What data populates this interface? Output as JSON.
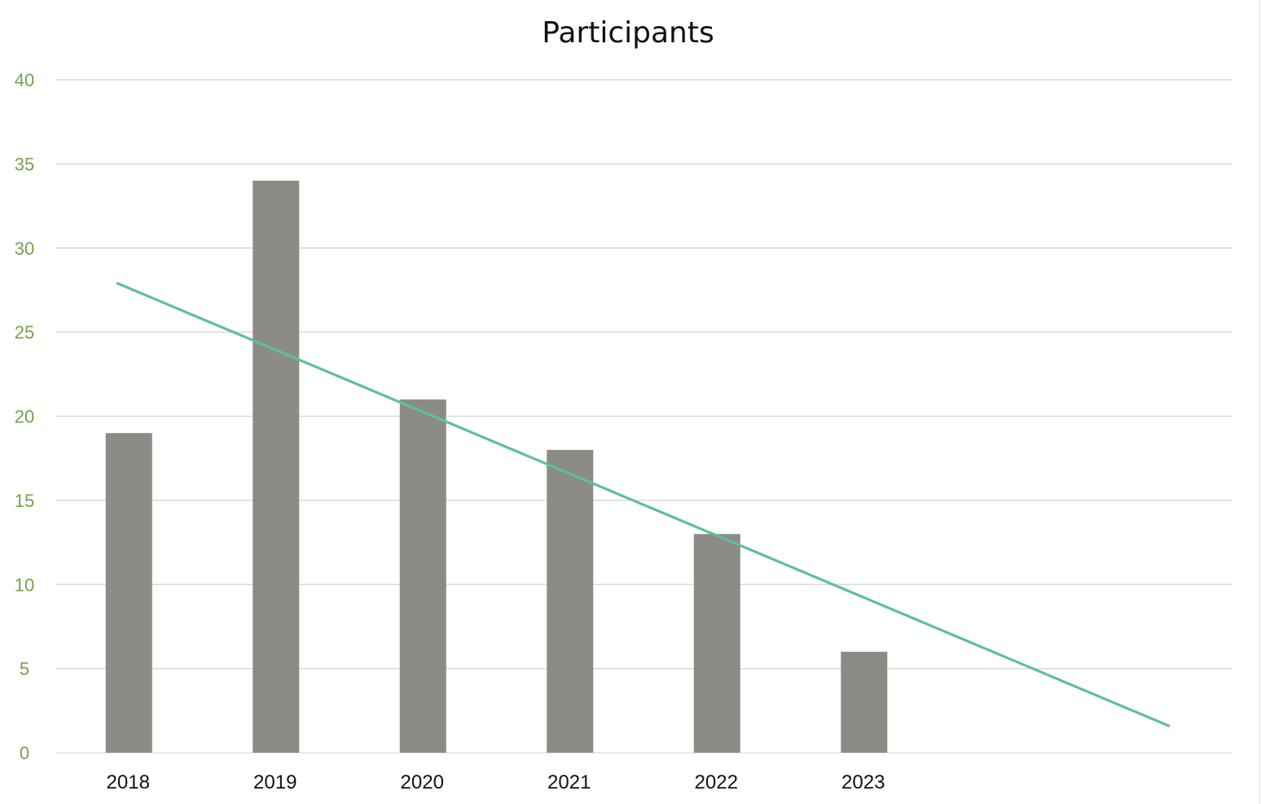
{
  "chart_data": {
    "type": "bar",
    "title": "Participants",
    "xlabel": "",
    "ylabel": "",
    "categories": [
      "2018",
      "2019",
      "2020",
      "2021",
      "2022",
      "2023"
    ],
    "series": [
      {
        "values": [
          19,
          34,
          21,
          18,
          13,
          6
        ]
      }
    ],
    "trendline": {
      "type": "linear",
      "start": {
        "x": "2018",
        "y": 27.9
      },
      "end_value": 1.6,
      "forecast_forward_periods": 2
    },
    "ylim": [
      0,
      40
    ],
    "yticks": [
      "0",
      "5",
      "10",
      "15",
      "20",
      "25",
      "30",
      "35",
      "40"
    ],
    "grid": true,
    "legend": "none",
    "colors": {
      "bar": "#8c8c86",
      "trendline": "#5dbf9d",
      "gridline": "#d9d9d9",
      "baseline": "#e4e6d8",
      "y_tick_text": "#77a04a",
      "x_tick_text": "#111111",
      "title_text": "#111111"
    }
  }
}
